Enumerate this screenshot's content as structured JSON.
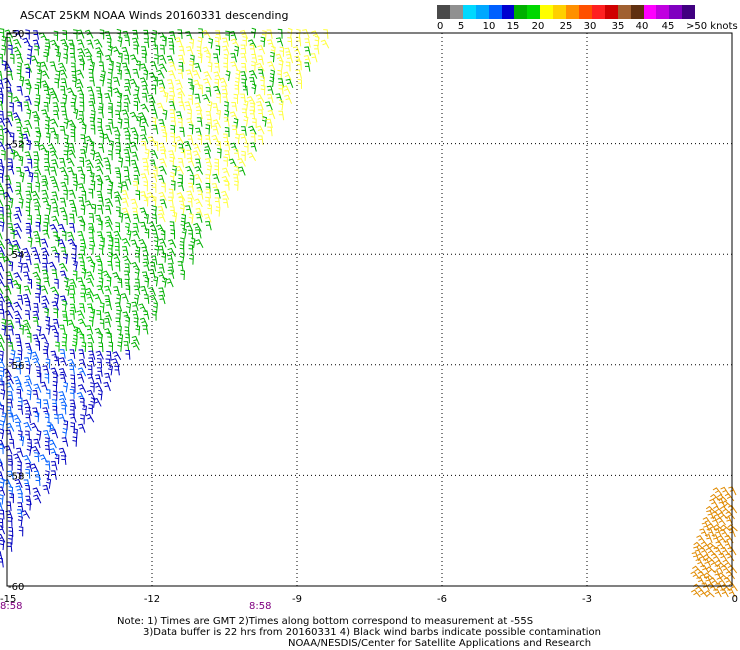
{
  "title": "ASCAT 25KM NOAA Winds 20160331 descending",
  "colorbar": {
    "colors": [
      "#4a4a4a",
      "#909090",
      "#00d8ff",
      "#00a8ff",
      "#0060ff",
      "#0000d0",
      "#00b000",
      "#00d800",
      "#ffff00",
      "#ffd000",
      "#ff9000",
      "#ff5000",
      "#ff2020",
      "#d00000",
      "#a06030",
      "#603010",
      "#ff00ff",
      "#c000e0",
      "#8000c0",
      "#400080"
    ],
    "labels": [
      "0",
      "5",
      "10",
      "15",
      "20",
      "25",
      "30",
      "35",
      "40",
      "45",
      ">50 knots"
    ]
  },
  "axes": {
    "x_ticks": [
      "-15",
      "-12",
      "-9",
      "-6",
      "-3",
      "0"
    ],
    "y_ticks": [
      "-50",
      "-52",
      "-54",
      "-56",
      "-58",
      "-60"
    ],
    "time_labels": [
      "8:58",
      "8:58"
    ]
  },
  "notes": {
    "line1": "Note: 1) Times are GMT 2)Times along bottom correspond to measurement at -55S",
    "line2": "3)Data buffer is 22 hrs from 20160331 4) Black wind barbs indicate possible contamination",
    "line3": "NOAA/NESDIS/Center for Satellite Applications and Research"
  },
  "chart_data": {
    "type": "wind-barb map",
    "xlim": [
      -15,
      0
    ],
    "ylim": [
      -60,
      -50
    ],
    "grid": true,
    "swaths": [
      {
        "name": "",
        "edge": [
          [
            -15,
            -59.5
          ],
          [
            -8.2,
            -50
          ]
        ],
        "speed_bands": [
          "blue",
          "green",
          "yellow"
        ]
      },
      {
        "name": "",
        "edge": [
          [
            -0.6,
            -60
          ],
          [
            -0.1,
            -58.3
          ]
        ],
        "speed_bands": [
          "orange"
        ]
      }
    ]
  }
}
